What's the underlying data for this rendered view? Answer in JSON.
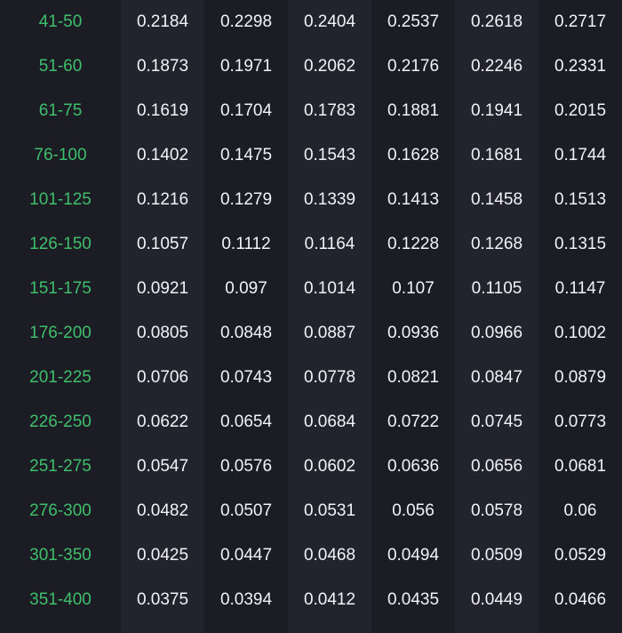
{
  "table": {
    "colors": {
      "range_text": "#3fbf6b",
      "value_text": "#f2f3f7",
      "column_a": "#1b1c24",
      "column_b": "#22232d"
    },
    "rows": [
      {
        "range": "41-50",
        "values": [
          "0.2184",
          "0.2298",
          "0.2404",
          "0.2537",
          "0.2618",
          "0.2717"
        ]
      },
      {
        "range": "51-60",
        "values": [
          "0.1873",
          "0.1971",
          "0.2062",
          "0.2176",
          "0.2246",
          "0.2331"
        ]
      },
      {
        "range": "61-75",
        "values": [
          "0.1619",
          "0.1704",
          "0.1783",
          "0.1881",
          "0.1941",
          "0.2015"
        ]
      },
      {
        "range": "76-100",
        "values": [
          "0.1402",
          "0.1475",
          "0.1543",
          "0.1628",
          "0.1681",
          "0.1744"
        ]
      },
      {
        "range": "101-125",
        "values": [
          "0.1216",
          "0.1279",
          "0.1339",
          "0.1413",
          "0.1458",
          "0.1513"
        ]
      },
      {
        "range": "126-150",
        "values": [
          "0.1057",
          "0.1112",
          "0.1164",
          "0.1228",
          "0.1268",
          "0.1315"
        ]
      },
      {
        "range": "151-175",
        "values": [
          "0.0921",
          "0.097",
          "0.1014",
          "0.107",
          "0.1105",
          "0.1147"
        ]
      },
      {
        "range": "176-200",
        "values": [
          "0.0805",
          "0.0848",
          "0.0887",
          "0.0936",
          "0.0966",
          "0.1002"
        ]
      },
      {
        "range": "201-225",
        "values": [
          "0.0706",
          "0.0743",
          "0.0778",
          "0.0821",
          "0.0847",
          "0.0879"
        ]
      },
      {
        "range": "226-250",
        "values": [
          "0.0622",
          "0.0654",
          "0.0684",
          "0.0722",
          "0.0745",
          "0.0773"
        ]
      },
      {
        "range": "251-275",
        "values": [
          "0.0547",
          "0.0576",
          "0.0602",
          "0.0636",
          "0.0656",
          "0.0681"
        ]
      },
      {
        "range": "276-300",
        "values": [
          "0.0482",
          "0.0507",
          "0.0531",
          "0.056",
          "0.0578",
          "0.06"
        ]
      },
      {
        "range": "301-350",
        "values": [
          "0.0425",
          "0.0447",
          "0.0468",
          "0.0494",
          "0.0509",
          "0.0529"
        ]
      },
      {
        "range": "351-400",
        "values": [
          "0.0375",
          "0.0394",
          "0.0412",
          "0.0435",
          "0.0449",
          "0.0466"
        ]
      }
    ]
  }
}
